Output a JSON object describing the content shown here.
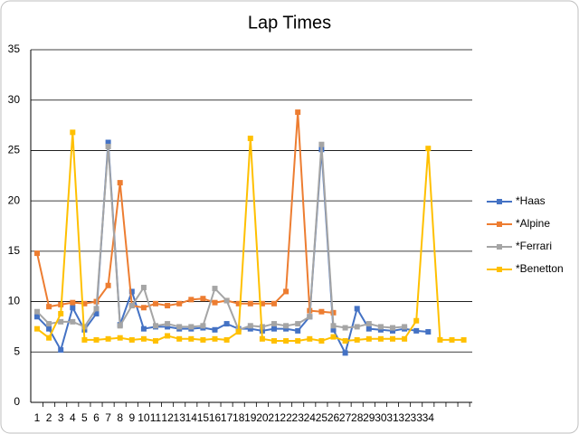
{
  "chart_data": {
    "type": "line",
    "title": "Lap Times",
    "categories": [
      "1",
      "2",
      "3",
      "4",
      "5",
      "6",
      "7",
      "8",
      "9",
      "10",
      "11",
      "12",
      "13",
      "14",
      "15",
      "16",
      "17",
      "18",
      "19",
      "20",
      "21",
      "22",
      "23",
      "24",
      "25",
      "26",
      "27",
      "28",
      "29",
      "30",
      "31",
      "32",
      "33",
      "34",
      null,
      null,
      null
    ],
    "series": [
      {
        "name": "*Haas",
        "color": "#4472c4",
        "values": [
          8.5,
          7.3,
          5.2,
          9.4,
          7.2,
          8.8,
          25.8,
          7.7,
          11.0,
          7.3,
          7.5,
          7.5,
          7.3,
          7.3,
          7.4,
          7.2,
          7.8,
          7.3,
          7.3,
          7.1,
          7.3,
          7.3,
          7.1,
          8.5,
          25.1,
          7.2,
          4.9,
          9.3,
          7.3,
          7.2,
          7.1,
          7.3,
          7.1,
          7.0,
          null,
          null,
          null
        ]
      },
      {
        "name": "*Alpine",
        "color": "#ed7d31",
        "values": [
          14.8,
          9.5,
          9.7,
          9.9,
          9.8,
          10.0,
          11.6,
          21.8,
          9.6,
          9.4,
          9.8,
          9.6,
          9.8,
          10.2,
          10.3,
          9.9,
          10.1,
          9.8,
          9.8,
          9.8,
          9.8,
          11.0,
          28.8,
          9.1,
          9.0,
          8.9,
          null,
          null,
          null,
          null,
          null,
          null,
          null,
          null,
          null,
          null,
          null
        ]
      },
      {
        "name": "*Ferrari",
        "color": "#a5a5a5",
        "values": [
          9.0,
          7.8,
          8.0,
          8.0,
          7.5,
          9.3,
          25.4,
          7.6,
          9.6,
          11.4,
          7.6,
          7.8,
          7.5,
          7.5,
          7.6,
          11.3,
          10.1,
          7.2,
          7.6,
          7.5,
          7.8,
          7.6,
          7.8,
          8.5,
          25.6,
          7.6,
          7.4,
          7.5,
          7.8,
          7.5,
          7.4,
          7.5,
          null,
          null,
          null,
          null,
          null
        ]
      },
      {
        "name": "*Benetton",
        "color": "#ffc000",
        "values": [
          7.3,
          6.4,
          8.8,
          26.8,
          6.2,
          6.2,
          6.3,
          6.4,
          6.2,
          6.3,
          6.1,
          6.6,
          6.3,
          6.3,
          6.2,
          6.3,
          6.2,
          7.0,
          26.2,
          6.3,
          6.1,
          6.1,
          6.1,
          6.3,
          6.1,
          6.5,
          6.1,
          6.2,
          6.3,
          6.3,
          6.3,
          6.3,
          8.1,
          25.2,
          6.2,
          6.2,
          6.2
        ]
      }
    ],
    "ylim": [
      0,
      35
    ],
    "yticks": [
      0,
      5,
      10,
      15,
      20,
      25,
      30,
      35
    ],
    "grid": true,
    "legend": "right"
  }
}
